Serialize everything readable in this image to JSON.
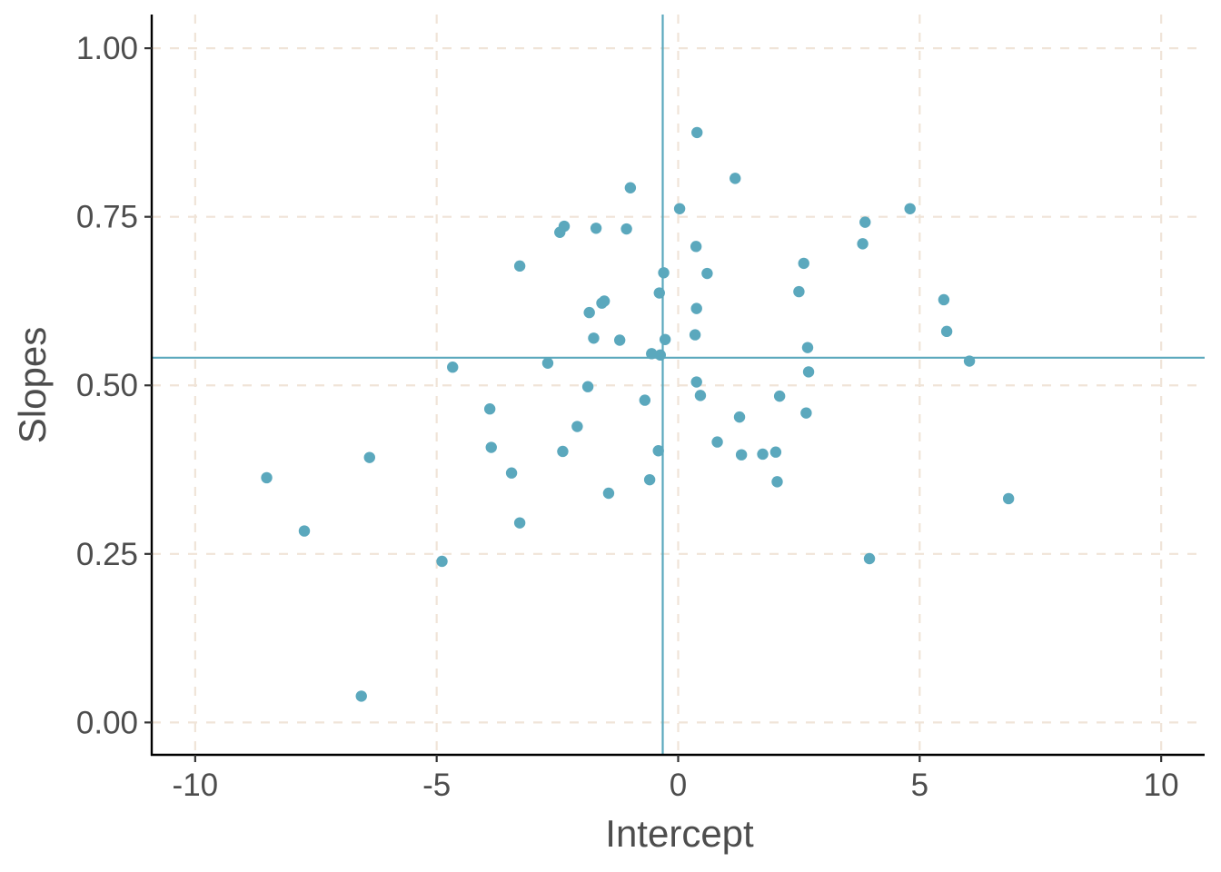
{
  "chart_data": {
    "type": "scatter",
    "title": "",
    "xlabel": "Intercept",
    "ylabel": "Slopes",
    "xlim": [
      -10.9,
      10.9
    ],
    "ylim": [
      -0.048,
      1.05
    ],
    "x_ticks": [
      -10,
      -5,
      0,
      5,
      10
    ],
    "x_tick_labels": [
      "-10",
      "-5",
      "0",
      "5",
      "10"
    ],
    "y_ticks": [
      0.0,
      0.25,
      0.5,
      0.75,
      1.0
    ],
    "y_tick_labels": [
      "0.00",
      "0.25",
      "0.50",
      "0.75",
      "1.00"
    ],
    "grid": true,
    "grid_style": "dashed",
    "reference_lines": {
      "vertical_x": -0.32,
      "horizontal_y": 0.541
    },
    "colors": {
      "points": "#5ba8bd",
      "reference_lines": "#5ba8bd",
      "grid": "#f0e4d8",
      "axis": "#000000",
      "text": "#4d4d4d"
    },
    "points": [
      [
        0.39,
        0.875
      ],
      [
        1.18,
        0.807
      ],
      [
        -0.99,
        0.793
      ],
      [
        0.03,
        0.762
      ],
      [
        4.8,
        0.762
      ],
      [
        3.87,
        0.742
      ],
      [
        -2.36,
        0.736
      ],
      [
        -2.45,
        0.727
      ],
      [
        -1.7,
        0.733
      ],
      [
        -1.07,
        0.732
      ],
      [
        0.37,
        0.706
      ],
      [
        3.82,
        0.71
      ],
      [
        2.6,
        0.681
      ],
      [
        -3.28,
        0.677
      ],
      [
        -0.3,
        0.667
      ],
      [
        0.6,
        0.666
      ],
      [
        -0.39,
        0.637
      ],
      [
        2.5,
        0.639
      ],
      [
        5.5,
        0.627
      ],
      [
        -1.53,
        0.625
      ],
      [
        -1.58,
        0.622
      ],
      [
        0.38,
        0.614
      ],
      [
        -1.84,
        0.608
      ],
      [
        5.56,
        0.58
      ],
      [
        0.35,
        0.575
      ],
      [
        -1.75,
        0.57
      ],
      [
        -1.21,
        0.567
      ],
      [
        -0.27,
        0.568
      ],
      [
        2.68,
        0.556
      ],
      [
        -0.55,
        0.547
      ],
      [
        -0.37,
        0.545
      ],
      [
        6.03,
        0.536
      ],
      [
        -2.7,
        0.533
      ],
      [
        -4.67,
        0.527
      ],
      [
        2.7,
        0.52
      ],
      [
        0.38,
        0.505
      ],
      [
        -1.87,
        0.498
      ],
      [
        0.46,
        0.485
      ],
      [
        2.1,
        0.484
      ],
      [
        -0.69,
        0.478
      ],
      [
        -3.9,
        0.465
      ],
      [
        2.65,
        0.459
      ],
      [
        1.27,
        0.453
      ],
      [
        -2.09,
        0.439
      ],
      [
        0.81,
        0.416
      ],
      [
        -3.87,
        0.408
      ],
      [
        -2.39,
        0.402
      ],
      [
        -0.41,
        0.403
      ],
      [
        2.02,
        0.401
      ],
      [
        1.75,
        0.398
      ],
      [
        1.31,
        0.397
      ],
      [
        -6.39,
        0.393
      ],
      [
        -3.45,
        0.37
      ],
      [
        -8.52,
        0.363
      ],
      [
        -0.59,
        0.36
      ],
      [
        2.05,
        0.357
      ],
      [
        -1.44,
        0.34
      ],
      [
        6.84,
        0.332
      ],
      [
        -3.28,
        0.296
      ],
      [
        -7.74,
        0.284
      ],
      [
        3.96,
        0.243
      ],
      [
        -4.89,
        0.239
      ],
      [
        -6.56,
        0.039
      ]
    ]
  }
}
